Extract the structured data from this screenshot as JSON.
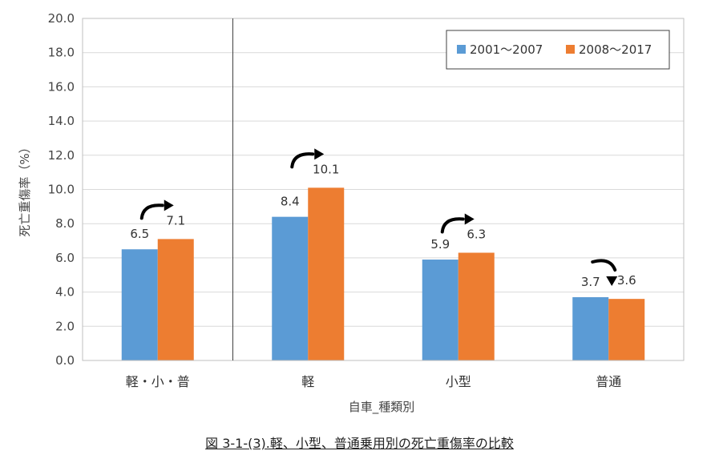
{
  "chart_data": {
    "type": "bar",
    "title": "",
    "xlabel": "自車_種類別",
    "ylabel": "死亡重傷率（%）",
    "ylim": [
      0,
      20
    ],
    "yticks": [
      "0.0",
      "2.0",
      "4.0",
      "6.0",
      "8.0",
      "10.0",
      "12.0",
      "14.0",
      "16.0",
      "18.0",
      "20.0"
    ],
    "categories": [
      "軽・小・普",
      "軽",
      "小型",
      "普通"
    ],
    "series": [
      {
        "name": "2001〜2007",
        "color": "#5b9bd5",
        "values": [
          6.5,
          8.4,
          5.9,
          3.7
        ],
        "labels": [
          "6.5",
          "8.4",
          "5.9",
          "3.7"
        ]
      },
      {
        "name": "2008〜2017",
        "color": "#ed7d31",
        "values": [
          7.1,
          10.1,
          6.3,
          3.6
        ],
        "labels": [
          "7.1",
          "10.1",
          "6.3",
          "3.6"
        ]
      }
    ],
    "trend_arrows": [
      "up",
      "up",
      "up",
      "down"
    ],
    "separator_after_category": 0,
    "grid": true,
    "legend_position": "top-right"
  },
  "caption": "図 3-1-(3).軽、小型、普通乗用別の死亡重傷率の比較"
}
